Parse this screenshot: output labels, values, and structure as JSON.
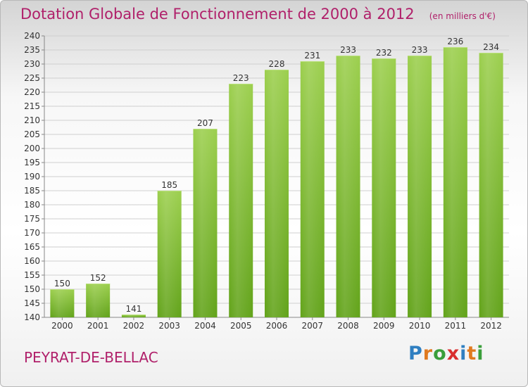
{
  "title": "Dotation Globale de Fonctionnement de 2000 à 2012",
  "subtitle": "(en milliers d'€)",
  "commune": "PEYRAT-DE-BELLAC",
  "logo": {
    "letters": [
      "P",
      "r",
      "o",
      "x",
      "i",
      "t",
      "i"
    ],
    "colors": [
      "#2f7fc1",
      "#e07a1f",
      "#3a9e3a",
      "#d92e2e",
      "#2f7fc1",
      "#e07a1f",
      "#3a9e3a"
    ]
  },
  "colors": {
    "bar_top": "#9ccf4e",
    "bar_bottom": "#62a31a",
    "title": "#b0206a"
  },
  "chart_data": {
    "type": "bar",
    "categories": [
      "2000",
      "2001",
      "2002",
      "2003",
      "2004",
      "2005",
      "2006",
      "2007",
      "2008",
      "2009",
      "2010",
      "2011",
      "2012"
    ],
    "values": [
      150,
      152,
      141,
      185,
      207,
      223,
      228,
      231,
      233,
      232,
      233,
      236,
      234
    ],
    "data_labels": [
      "150",
      "152",
      "141",
      "185",
      "207",
      "223",
      "228",
      "231",
      "233",
      "232",
      "233",
      "236",
      "234"
    ],
    "ylim": [
      140,
      240
    ],
    "yticks": [
      "140",
      "145",
      "150",
      "155",
      "160",
      "165",
      "170",
      "175",
      "180",
      "185",
      "190",
      "195",
      "200",
      "205",
      "210",
      "215",
      "220",
      "225",
      "230",
      "235",
      "240"
    ],
    "grid": true
  }
}
